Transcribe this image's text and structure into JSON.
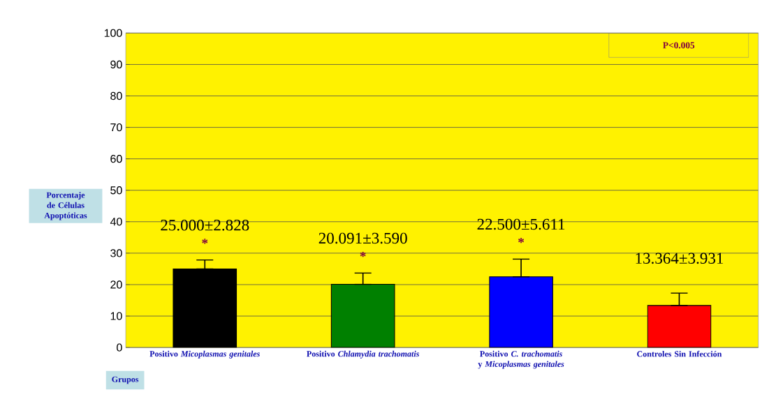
{
  "chart_data": {
    "type": "bar",
    "categories": [
      "Positivo *Micoplasmas genitales*",
      "Positivo *Chlamydia trachomatis*",
      "Positivo *C. trachomatis* y *Micoplasmas genitales*",
      "Controles Sin Infección"
    ],
    "values": [
      25.0,
      20.091,
      22.5,
      13.364
    ],
    "colors": [
      "#000000",
      "#008000",
      "#0000ff",
      "#ff0000"
    ],
    "errors": [
      [
        25.0,
        27.828
      ],
      [
        20.091,
        23.681
      ],
      [
        22.5,
        28.111
      ],
      [
        13.364,
        17.295
      ]
    ],
    "value_labels": [
      "25.000±2.828",
      "20.091±3.590",
      "22.500±5.611",
      "13.364±3.931"
    ],
    "ylabel": "Porcentaje de Células Apoptóticas",
    "xlabel": "Grupos",
    "ylim": [
      0,
      100
    ],
    "yticks": [
      0,
      10,
      20,
      30,
      40,
      50,
      60,
      70,
      80,
      90,
      100
    ],
    "grid": "y",
    "annotations": [
      "*",
      "*",
      "*",
      "P<0.005"
    ]
  }
}
